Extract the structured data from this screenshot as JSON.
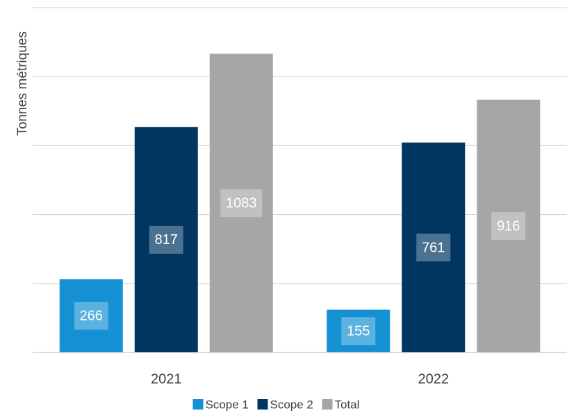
{
  "chart_data": {
    "type": "bar",
    "y_label": "Tonnes métriques",
    "categories": [
      "2021",
      "2022"
    ],
    "series": [
      {
        "name": "Scope 1",
        "color": "#1591d3",
        "values": [
          266,
          155
        ]
      },
      {
        "name": "Scope 2",
        "color": "#003660",
        "values": [
          817,
          761
        ]
      },
      {
        "name": "Total",
        "color": "#a6a6a6",
        "values": [
          1083,
          916
        ]
      }
    ],
    "ylim": [
      0,
      1250
    ],
    "yticks": [
      0,
      250,
      500,
      750,
      1000,
      1250
    ],
    "grid": true,
    "legend": "bottom"
  }
}
